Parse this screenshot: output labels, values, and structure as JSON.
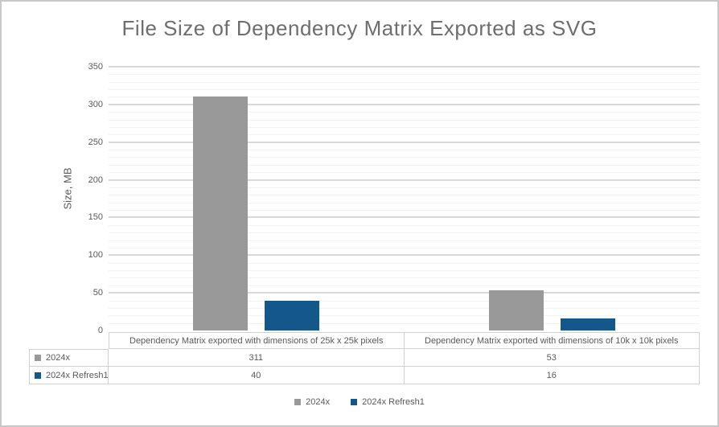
{
  "chart_data": {
    "type": "bar",
    "title": "File Size of Dependency Matrix Exported as SVG",
    "xlabel": "",
    "ylabel": "Size, MB",
    "ylim": [
      0,
      350
    ],
    "y_major_step": 50,
    "y_minor_step": 10,
    "yticks": [
      0,
      50,
      100,
      150,
      200,
      250,
      300,
      350
    ],
    "grid": true,
    "legend_position": "bottom",
    "data_table_shown": true,
    "categories": [
      "Dependency Matrix exported with dimensions of 25k x 25k pixels",
      "Dependency Matrix exported with dimensions of 10k x 10k pixels"
    ],
    "series": [
      {
        "name": "2024x",
        "color": "#9a999a",
        "values": [
          311,
          53
        ]
      },
      {
        "name": "2024x Refresh1",
        "color": "#14578b",
        "values": [
          40,
          16
        ]
      }
    ]
  },
  "colors": {
    "title_text": "#6e6e6e",
    "axis_text": "#595959",
    "major_gridline": "#d9d9d9",
    "minor_gridline": "#f2f2f2",
    "table_border": "#d0d0d0",
    "frame_border": "#c8c8c8",
    "background": "#ffffff"
  }
}
